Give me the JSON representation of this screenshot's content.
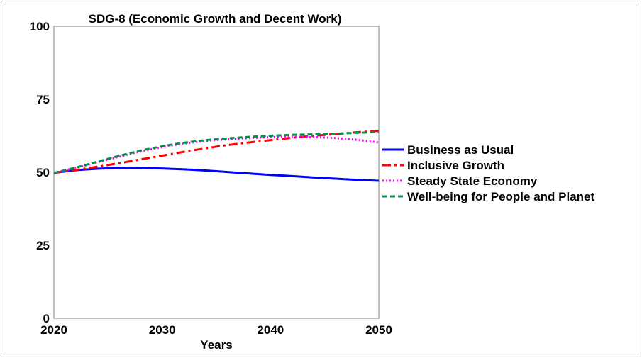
{
  "chart_data": {
    "type": "line",
    "title": "SDG-8 (Economic Growth and Decent Work)",
    "xlabel": "Years",
    "ylabel": "",
    "xlim": [
      2020,
      2050
    ],
    "ylim": [
      0,
      100
    ],
    "x_ticks": [
      "2020",
      "2030",
      "2040",
      "2050"
    ],
    "y_ticks": [
      "0",
      "25",
      "50",
      "75",
      "100"
    ],
    "x": [
      2020,
      2022,
      2024,
      2026,
      2028,
      2030,
      2032,
      2034,
      2036,
      2038,
      2040,
      2042,
      2044,
      2046,
      2048,
      2050
    ],
    "series": [
      {
        "name": "Business as Usual",
        "color": "#0000ff",
        "style": "solid",
        "values": [
          49.8,
          50.7,
          51.2,
          51.5,
          51.5,
          51.3,
          51.0,
          50.6,
          50.1,
          49.6,
          49.1,
          48.7,
          48.2,
          47.8,
          47.4,
          47.1
        ]
      },
      {
        "name": "Inclusive Growth",
        "color": "#ff0000",
        "style": "dashdot",
        "values": [
          49.8,
          50.8,
          51.9,
          53.1,
          54.4,
          55.7,
          57.0,
          58.2,
          59.3,
          60.2,
          61.0,
          61.8,
          62.5,
          63.1,
          63.7,
          64.2
        ]
      },
      {
        "name": "Steady State Economy",
        "color": "#ff00ff",
        "style": "dotted",
        "values": [
          49.8,
          51.5,
          53.4,
          55.3,
          57.1,
          58.6,
          59.8,
          60.7,
          61.3,
          61.7,
          62.0,
          62.1,
          62.0,
          61.7,
          61.1,
          60.2
        ]
      },
      {
        "name": "Well-being for People and Planet",
        "color": "#009245",
        "style": "dashed",
        "values": [
          49.8,
          51.6,
          53.6,
          55.6,
          57.4,
          58.9,
          60.1,
          61.0,
          61.6,
          62.1,
          62.5,
          62.8,
          63.0,
          63.2,
          63.5,
          63.8
        ]
      }
    ],
    "grid": false,
    "legend_position": "right"
  }
}
